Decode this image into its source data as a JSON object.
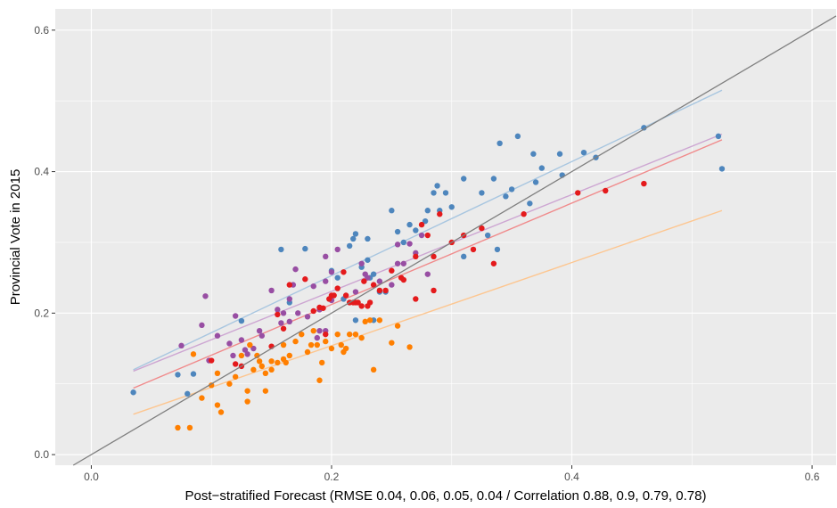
{
  "chart_data": {
    "type": "scatter",
    "title": "",
    "xlabel": "Post−stratified Forecast (RMSE 0.04, 0.06, 0.05, 0.04 / Correlation 0.88, 0.9, 0.79, 0.78)",
    "ylabel": "Provincial Vote in 2015",
    "xlim": [
      -0.03,
      0.62
    ],
    "ylim": [
      -0.015,
      0.63
    ],
    "x_ticks": [
      0.0,
      0.2,
      0.4,
      0.6
    ],
    "x_tick_labels": [
      "0.0",
      "0.2",
      "0.4",
      "0.6"
    ],
    "y_ticks": [
      0.0,
      0.2,
      0.4,
      0.6
    ],
    "y_tick_labels": [
      "0.0",
      "0.2",
      "0.4",
      "0.6"
    ],
    "grid": true,
    "background": "#ebebeb",
    "reference_line": {
      "slope": 1,
      "intercept": 0,
      "color": "#7f7f7f"
    },
    "series": [
      {
        "color": "#4e86bd",
        "fit_color": "#a8c6e0",
        "fit": [
          [
            0.035,
            0.12
          ],
          [
            0.525,
            0.515
          ]
        ],
        "points": [
          [
            0.035,
            0.088
          ],
          [
            0.072,
            0.113
          ],
          [
            0.08,
            0.086
          ],
          [
            0.085,
            0.114
          ],
          [
            0.125,
            0.189
          ],
          [
            0.158,
            0.29
          ],
          [
            0.165,
            0.215
          ],
          [
            0.178,
            0.291
          ],
          [
            0.2,
            0.26
          ],
          [
            0.205,
            0.25
          ],
          [
            0.21,
            0.22
          ],
          [
            0.215,
            0.295
          ],
          [
            0.218,
            0.305
          ],
          [
            0.22,
            0.312
          ],
          [
            0.22,
            0.19
          ],
          [
            0.225,
            0.265
          ],
          [
            0.23,
            0.275
          ],
          [
            0.23,
            0.305
          ],
          [
            0.232,
            0.25
          ],
          [
            0.235,
            0.255
          ],
          [
            0.235,
            0.19
          ],
          [
            0.24,
            0.23
          ],
          [
            0.245,
            0.23
          ],
          [
            0.25,
            0.345
          ],
          [
            0.255,
            0.315
          ],
          [
            0.26,
            0.3
          ],
          [
            0.265,
            0.325
          ],
          [
            0.27,
            0.317
          ],
          [
            0.278,
            0.33
          ],
          [
            0.28,
            0.345
          ],
          [
            0.285,
            0.37
          ],
          [
            0.288,
            0.38
          ],
          [
            0.29,
            0.345
          ],
          [
            0.295,
            0.37
          ],
          [
            0.3,
            0.35
          ],
          [
            0.31,
            0.39
          ],
          [
            0.31,
            0.28
          ],
          [
            0.325,
            0.37
          ],
          [
            0.33,
            0.31
          ],
          [
            0.335,
            0.39
          ],
          [
            0.338,
            0.29
          ],
          [
            0.34,
            0.44
          ],
          [
            0.345,
            0.365
          ],
          [
            0.35,
            0.375
          ],
          [
            0.355,
            0.45
          ],
          [
            0.365,
            0.355
          ],
          [
            0.368,
            0.425
          ],
          [
            0.37,
            0.385
          ],
          [
            0.375,
            0.405
          ],
          [
            0.39,
            0.425
          ],
          [
            0.392,
            0.395
          ],
          [
            0.41,
            0.427
          ],
          [
            0.42,
            0.42
          ],
          [
            0.46,
            0.462
          ],
          [
            0.522,
            0.45
          ],
          [
            0.525,
            0.404
          ]
        ]
      },
      {
        "color": "#984ea3",
        "fit_color": "#cda6d2",
        "fit": [
          [
            0.035,
            0.118
          ],
          [
            0.525,
            0.453
          ]
        ],
        "points": [
          [
            0.075,
            0.154
          ],
          [
            0.092,
            0.183
          ],
          [
            0.095,
            0.224
          ],
          [
            0.098,
            0.133
          ],
          [
            0.105,
            0.168
          ],
          [
            0.115,
            0.157
          ],
          [
            0.118,
            0.14
          ],
          [
            0.12,
            0.196
          ],
          [
            0.125,
            0.162
          ],
          [
            0.128,
            0.148
          ],
          [
            0.13,
            0.142
          ],
          [
            0.135,
            0.15
          ],
          [
            0.14,
            0.175
          ],
          [
            0.142,
            0.168
          ],
          [
            0.15,
            0.232
          ],
          [
            0.155,
            0.205
          ],
          [
            0.158,
            0.186
          ],
          [
            0.16,
            0.2
          ],
          [
            0.165,
            0.22
          ],
          [
            0.165,
            0.188
          ],
          [
            0.168,
            0.24
          ],
          [
            0.17,
            0.262
          ],
          [
            0.172,
            0.2
          ],
          [
            0.18,
            0.195
          ],
          [
            0.185,
            0.238
          ],
          [
            0.19,
            0.205
          ],
          [
            0.195,
            0.175
          ],
          [
            0.195,
            0.245
          ],
          [
            0.2,
            0.218
          ],
          [
            0.2,
            0.258
          ],
          [
            0.205,
            0.29
          ],
          [
            0.195,
            0.28
          ],
          [
            0.22,
            0.23
          ],
          [
            0.225,
            0.27
          ],
          [
            0.228,
            0.255
          ],
          [
            0.23,
            0.25
          ],
          [
            0.24,
            0.245
          ],
          [
            0.25,
            0.24
          ],
          [
            0.255,
            0.297
          ],
          [
            0.255,
            0.27
          ],
          [
            0.26,
            0.27
          ],
          [
            0.265,
            0.298
          ],
          [
            0.27,
            0.285
          ],
          [
            0.275,
            0.31
          ],
          [
            0.28,
            0.255
          ],
          [
            0.19,
            0.175
          ],
          [
            0.188,
            0.165
          ]
        ]
      },
      {
        "color": "#e41a1c",
        "fit_color": "#f08a8b",
        "fit": [
          [
            0.035,
            0.094
          ],
          [
            0.525,
            0.445
          ]
        ],
        "points": [
          [
            0.1,
            0.133
          ],
          [
            0.12,
            0.128
          ],
          [
            0.125,
            0.125
          ],
          [
            0.15,
            0.153
          ],
          [
            0.155,
            0.198
          ],
          [
            0.16,
            0.178
          ],
          [
            0.165,
            0.24
          ],
          [
            0.178,
            0.248
          ],
          [
            0.185,
            0.203
          ],
          [
            0.19,
            0.208
          ],
          [
            0.193,
            0.207
          ],
          [
            0.195,
            0.17
          ],
          [
            0.198,
            0.22
          ],
          [
            0.2,
            0.225
          ],
          [
            0.202,
            0.225
          ],
          [
            0.205,
            0.235
          ],
          [
            0.21,
            0.258
          ],
          [
            0.212,
            0.225
          ],
          [
            0.215,
            0.215
          ],
          [
            0.218,
            0.215
          ],
          [
            0.22,
            0.215
          ],
          [
            0.222,
            0.215
          ],
          [
            0.225,
            0.21
          ],
          [
            0.227,
            0.245
          ],
          [
            0.23,
            0.21
          ],
          [
            0.232,
            0.215
          ],
          [
            0.235,
            0.24
          ],
          [
            0.24,
            0.232
          ],
          [
            0.245,
            0.232
          ],
          [
            0.25,
            0.26
          ],
          [
            0.258,
            0.25
          ],
          [
            0.26,
            0.247
          ],
          [
            0.27,
            0.22
          ],
          [
            0.27,
            0.28
          ],
          [
            0.275,
            0.325
          ],
          [
            0.28,
            0.31
          ],
          [
            0.285,
            0.28
          ],
          [
            0.285,
            0.232
          ],
          [
            0.29,
            0.34
          ],
          [
            0.3,
            0.3
          ],
          [
            0.31,
            0.31
          ],
          [
            0.318,
            0.29
          ],
          [
            0.325,
            0.32
          ],
          [
            0.335,
            0.27
          ],
          [
            0.36,
            0.34
          ],
          [
            0.405,
            0.37
          ],
          [
            0.428,
            0.373
          ],
          [
            0.46,
            0.383
          ]
        ]
      },
      {
        "color": "#ff7f00",
        "fit_color": "#fdc690",
        "fit": [
          [
            0.035,
            0.057
          ],
          [
            0.525,
            0.345
          ]
        ],
        "points": [
          [
            0.072,
            0.038
          ],
          [
            0.082,
            0.038
          ],
          [
            0.085,
            0.142
          ],
          [
            0.092,
            0.08
          ],
          [
            0.1,
            0.098
          ],
          [
            0.105,
            0.115
          ],
          [
            0.105,
            0.07
          ],
          [
            0.108,
            0.06
          ],
          [
            0.115,
            0.1
          ],
          [
            0.12,
            0.11
          ],
          [
            0.125,
            0.14
          ],
          [
            0.13,
            0.09
          ],
          [
            0.132,
            0.155
          ],
          [
            0.135,
            0.12
          ],
          [
            0.138,
            0.14
          ],
          [
            0.14,
            0.132
          ],
          [
            0.142,
            0.125
          ],
          [
            0.145,
            0.115
          ],
          [
            0.145,
            0.09
          ],
          [
            0.15,
            0.12
          ],
          [
            0.15,
            0.132
          ],
          [
            0.155,
            0.13
          ],
          [
            0.16,
            0.135
          ],
          [
            0.16,
            0.155
          ],
          [
            0.162,
            0.13
          ],
          [
            0.165,
            0.14
          ],
          [
            0.17,
            0.16
          ],
          [
            0.175,
            0.17
          ],
          [
            0.18,
            0.145
          ],
          [
            0.183,
            0.155
          ],
          [
            0.185,
            0.175
          ],
          [
            0.188,
            0.155
          ],
          [
            0.19,
            0.105
          ],
          [
            0.192,
            0.13
          ],
          [
            0.195,
            0.16
          ],
          [
            0.2,
            0.15
          ],
          [
            0.205,
            0.17
          ],
          [
            0.208,
            0.155
          ],
          [
            0.21,
            0.145
          ],
          [
            0.212,
            0.15
          ],
          [
            0.215,
            0.17
          ],
          [
            0.22,
            0.17
          ],
          [
            0.225,
            0.165
          ],
          [
            0.228,
            0.188
          ],
          [
            0.232,
            0.19
          ],
          [
            0.235,
            0.12
          ],
          [
            0.24,
            0.19
          ],
          [
            0.25,
            0.158
          ],
          [
            0.255,
            0.182
          ],
          [
            0.265,
            0.152
          ],
          [
            0.13,
            0.075
          ]
        ]
      }
    ]
  }
}
